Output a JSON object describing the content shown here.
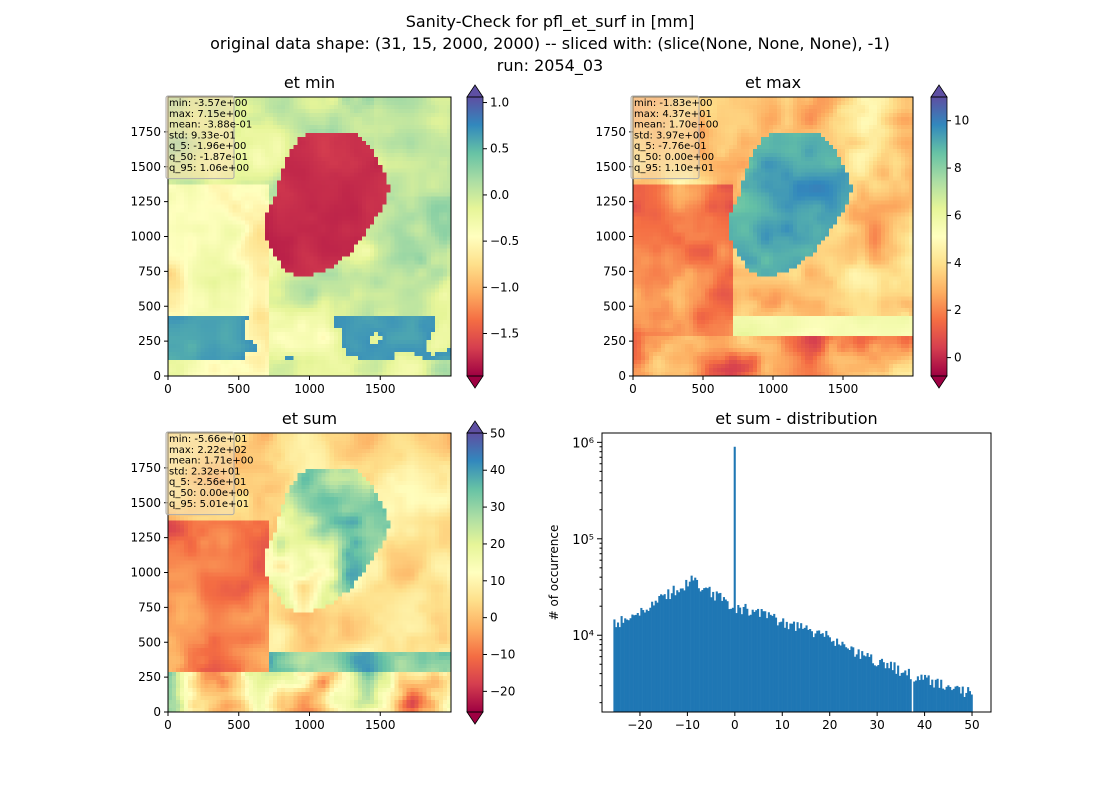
{
  "figure": {
    "title_lines": [
      "Sanity-Check for pfl_et_surf in [mm]",
      "original data shape: (31, 15, 2000, 2000) -- sliced with: (slice(None, None, None), -1)",
      "run: 2054_03"
    ]
  },
  "colors": {
    "spectral": [
      "#9e0142",
      "#d53e4f",
      "#f46d43",
      "#fdae61",
      "#fee08b",
      "#ffffbf",
      "#e6f598",
      "#abdda4",
      "#66c2a5",
      "#3288bd",
      "#5e4fa2"
    ],
    "hist_bar": "#1f77b4",
    "stats_box_bg": "#f5deb3"
  },
  "chart_data": [
    {
      "type": "heatmap",
      "title": "et min",
      "xlim": [
        0,
        2000
      ],
      "ylim": [
        0,
        2000
      ],
      "xticks": [
        0,
        500,
        1000,
        1500
      ],
      "yticks": [
        0,
        250,
        500,
        750,
        1000,
        1250,
        1500,
        1750
      ],
      "colormap": "Spectral",
      "colorbar": {
        "vmin": -1.96,
        "vmax": 1.06,
        "ticks": [
          -1.5,
          -1.0,
          -0.5,
          0.0,
          0.5,
          1.0
        ],
        "tick_labels": [
          "−1.5",
          "−1.0",
          "−0.5",
          "0.0",
          "0.5",
          "1.0"
        ],
        "extend": "both"
      },
      "stats": [
        "min: -3.57e+00",
        "max: 7.15e+00",
        "mean: -3.88e-01",
        "std: 9.33e-01",
        "q_5: -1.96e+00",
        "q_50: -1.87e-01",
        "q_95: 1.06e+00"
      ]
    },
    {
      "type": "heatmap",
      "title": "et max",
      "xlim": [
        0,
        2000
      ],
      "ylim": [
        0,
        2000
      ],
      "xticks": [
        0,
        500,
        1000,
        1500
      ],
      "yticks": [
        0,
        250,
        500,
        750,
        1000,
        1250,
        1500,
        1750
      ],
      "colormap": "Spectral",
      "colorbar": {
        "vmin": -0.776,
        "vmax": 11.0,
        "ticks": [
          0,
          2,
          4,
          6,
          8,
          10
        ],
        "tick_labels": [
          "0",
          "2",
          "4",
          "6",
          "8",
          "10"
        ],
        "extend": "both"
      },
      "stats": [
        "min: -1.83e+00",
        "max: 4.37e+01",
        "mean: 1.70e+00",
        "std: 3.97e+00",
        "q_5: -7.76e-01",
        "q_50: 0.00e+00",
        "q_95: 1.10e+01"
      ]
    },
    {
      "type": "heatmap",
      "title": "et sum",
      "xlim": [
        0,
        2000
      ],
      "ylim": [
        0,
        2000
      ],
      "xticks": [
        0,
        500,
        1000,
        1500
      ],
      "yticks": [
        0,
        250,
        500,
        750,
        1000,
        1250,
        1500,
        1750
      ],
      "colormap": "Spectral",
      "colorbar": {
        "vmin": -25.6,
        "vmax": 50.1,
        "ticks": [
          -20,
          -10,
          0,
          10,
          20,
          30,
          40,
          50
        ],
        "tick_labels": [
          "−20",
          "−10",
          "0",
          "10",
          "20",
          "30",
          "40",
          "50"
        ],
        "extend": "both"
      },
      "stats": [
        "min: -5.66e+01",
        "max: 2.22e+02",
        "mean: 1.71e+00",
        "std: 2.32e+01",
        "q_5: -2.56e+01",
        "q_50: 0.00e+00",
        "q_95: 5.01e+01"
      ]
    },
    {
      "type": "bar",
      "title": "et sum - distribution",
      "ylabel": "# of occurrence",
      "yscale": "log",
      "xlim": [
        -28,
        54
      ],
      "ylim": [
        1600,
        1250000
      ],
      "xticks": [
        -20,
        -10,
        0,
        10,
        20,
        30,
        40,
        50
      ],
      "xtick_labels": [
        "−20",
        "−10",
        "0",
        "10",
        "20",
        "30",
        "40",
        "50"
      ],
      "ytick_labels": [
        "10⁴",
        "10⁵",
        "10⁶"
      ],
      "bin_range": [
        -25.6,
        50.1
      ],
      "keypoints": [
        [
          -25.6,
          13000
        ],
        [
          -24.5,
          13500
        ],
        [
          -22,
          16000
        ],
        [
          -18,
          20000
        ],
        [
          -15,
          25000
        ],
        [
          -12,
          31000
        ],
        [
          -9,
          37000
        ],
        [
          -6,
          30000
        ],
        [
          -3,
          24000
        ],
        [
          -1,
          20000
        ],
        [
          1,
          19000
        ],
        [
          4,
          18000
        ],
        [
          8,
          15000
        ],
        [
          12,
          12500
        ],
        [
          16,
          11000
        ],
        [
          20,
          9500
        ],
        [
          25,
          7000
        ],
        [
          30,
          5500
        ],
        [
          35,
          4300
        ],
        [
          40,
          3500
        ],
        [
          45,
          3000
        ],
        [
          50,
          2500
        ]
      ],
      "spikes": [
        [
          0.0,
          900000
        ]
      ],
      "gap_at": 37.5
    }
  ]
}
